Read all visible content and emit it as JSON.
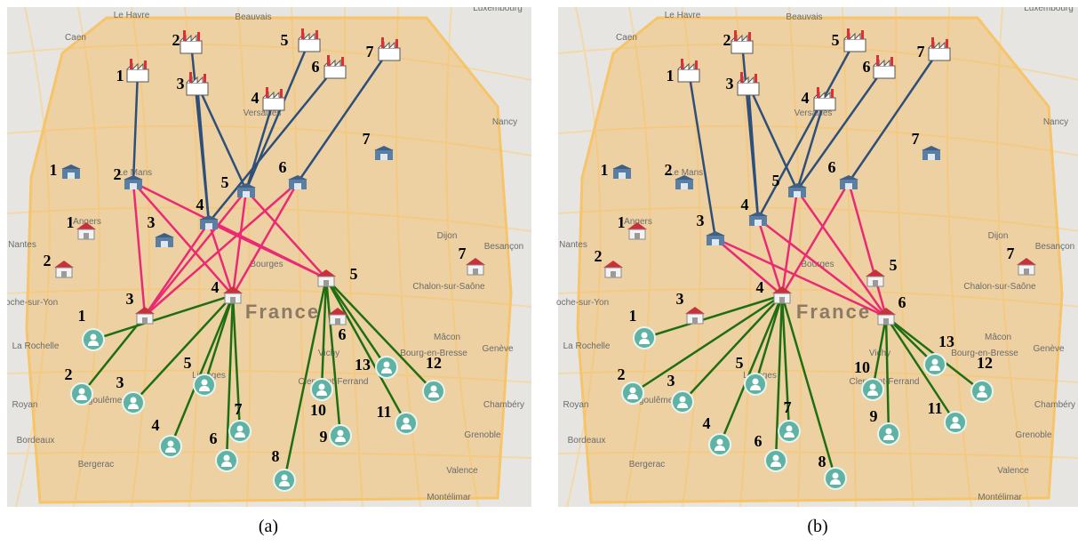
{
  "panels": [
    {
      "caption": "(a)",
      "factories": [
        "1",
        "2",
        "3",
        "4",
        "5",
        "6",
        "7"
      ],
      "warehouses": [
        "1",
        "2",
        "3",
        "4",
        "5",
        "6",
        "7"
      ],
      "distribution_centers": [
        "1",
        "2",
        "3",
        "4",
        "5",
        "6",
        "7"
      ],
      "customers": [
        "1",
        "2",
        "3",
        "4",
        "5",
        "6",
        "7",
        "8",
        "9",
        "10",
        "11",
        "12",
        "13"
      ]
    },
    {
      "caption": "(b)",
      "factories": [
        "1",
        "2",
        "3",
        "4",
        "5",
        "6",
        "7"
      ],
      "warehouses": [
        "1",
        "2",
        "3",
        "4",
        "5",
        "6",
        "7"
      ],
      "distribution_centers": [
        "1",
        "2",
        "3",
        "4",
        "5",
        "6",
        "7"
      ],
      "customers": [
        "1",
        "2",
        "3",
        "4",
        "5",
        "6",
        "7",
        "8",
        "9",
        "10",
        "11",
        "12",
        "13"
      ]
    }
  ],
  "map": {
    "place_names": [
      "Le Havre",
      "Beauvais",
      "Caen",
      "Versailles",
      "Le Mans",
      "Angers",
      "Nantes",
      "Bourges",
      "Dijon",
      "Besançon",
      "France",
      "Chalon-sur-Saône",
      "Roche-sur-Yon",
      "La Rochelle",
      "Royan",
      "Angoulême",
      "Limoges",
      "Clermont-Ferrand",
      "Mâcon",
      "Bourg-en-Bresse",
      "Genève",
      "Chambéry",
      "Grenoble",
      "Valence",
      "Montélimar",
      "Bordeaux",
      "Bergerac",
      "Luxembourg",
      "Nancy",
      "Vichy"
    ]
  }
}
